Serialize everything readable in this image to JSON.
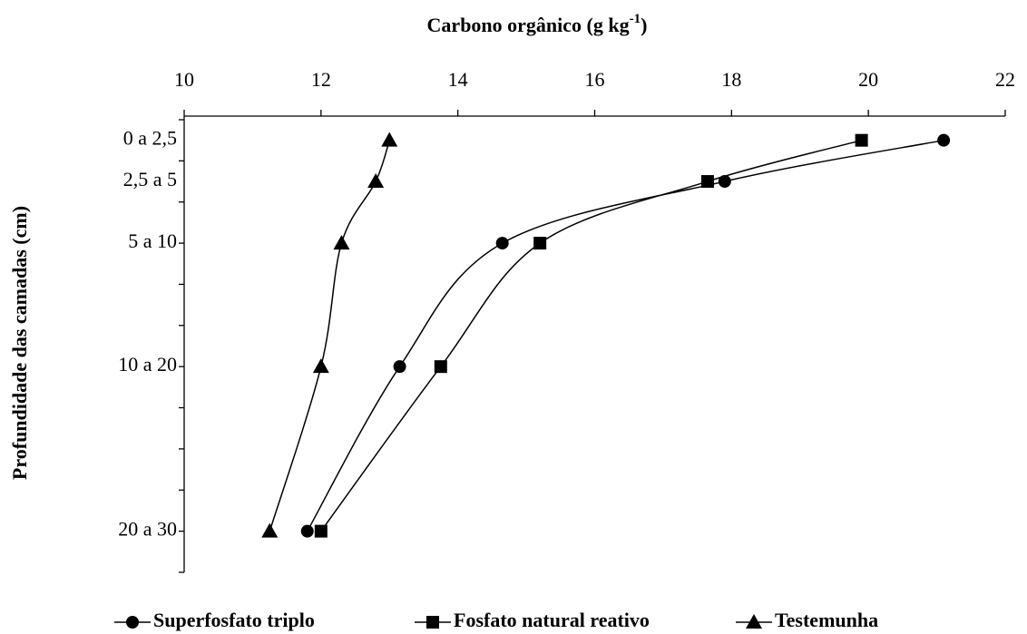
{
  "chart_data": {
    "type": "line",
    "title": "Carbono orgânico (g kg",
    "title_superscript": "-1",
    "title_end": ")",
    "y_label": "Profundidade das camadas (cm)",
    "categories": [
      "0 a 2,5",
      "2,5 a 5",
      "5 a 10",
      "10 a 20",
      "20 a 30"
    ],
    "y": [
      1.25,
      3.75,
      7.5,
      15,
      25
    ],
    "ylim": [
      0,
      27.5
    ],
    "yticks": [
      0,
      2.5,
      5,
      7.5,
      10,
      12.5,
      15,
      17.5,
      20,
      22.5,
      25,
      27.5
    ],
    "y_reversed": true,
    "xlim": [
      10,
      22
    ],
    "xticks": [
      10,
      12,
      14,
      16,
      18,
      20,
      22
    ],
    "x_axis_position": "top",
    "legend": "bottom",
    "series": [
      {
        "name": "Superfosfato triplo",
        "color": "#000000",
        "marker": "circle",
        "values": [
          21.1,
          17.9,
          14.65,
          13.15,
          11.8
        ]
      },
      {
        "name": "Fosfato natural reativo",
        "color": "#000000",
        "marker": "square",
        "values": [
          19.9,
          17.65,
          15.2,
          13.75,
          12.0
        ]
      },
      {
        "name": "Testemunha",
        "color": "#000000",
        "marker": "triangle",
        "values": [
          13.0,
          12.8,
          12.3,
          12.0,
          11.25
        ]
      }
    ]
  }
}
